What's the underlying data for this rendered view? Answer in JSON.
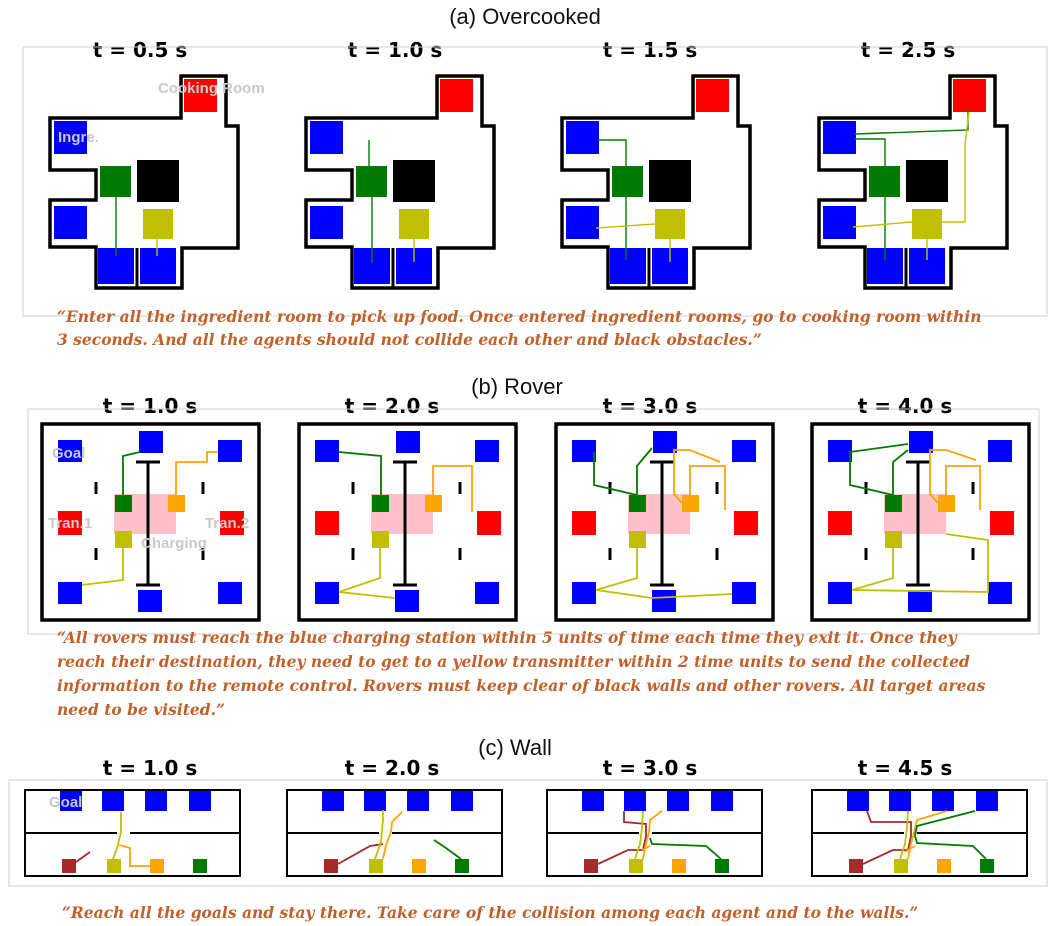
{
  "sections": {
    "overcooked": {
      "title": "(a) Overcooked",
      "times": [
        "t = 0.5 s",
        "t = 1.0 s",
        "t = 1.5 s",
        "t = 2.5 s"
      ],
      "labels": {
        "cooking": "Cooking Room",
        "ingredient": "Ingre."
      },
      "quote": [
        "“Enter all the ingredient room to pick up food. Once entered ingredient rooms, go to cooking room within",
        "3 seconds. And all the agents should not collide each other and black obstacles.”"
      ]
    },
    "rover": {
      "title": "(b) Rover",
      "times": [
        "t = 1.0 s",
        "t = 2.0 s",
        "t = 3.0 s",
        "t = 4.0 s"
      ],
      "labels": {
        "goal": "Goal",
        "tran1": "Tran.1",
        "tran2": "Tran.2",
        "charging": "Charging"
      },
      "quote": [
        "“All rovers must reach the blue charging station within 5 units of time each time they exit it. Once they",
        "reach their destination, they need to get to a yellow transmitter within 2 time units to send the collected",
        "information to the remote control. Rovers must keep clear of black walls and other rovers. All target areas",
        "need to be visited.”"
      ]
    },
    "wall": {
      "title": "(c) Wall",
      "times": [
        "t = 1.0 s",
        "t = 2.0 s",
        "t = 3.0 s",
        "t = 4.5 s"
      ],
      "labels": {
        "goal": "Goal"
      },
      "quote": [
        "“Reach all the goals and stay there. Take care of the collision among each agent and to the walls.”"
      ]
    }
  },
  "colors": {
    "goal_blue": "#0000ff",
    "cooking_red": "#ff0000",
    "obstacle_black": "#000000",
    "agent_green": "#007a00",
    "agent_yellow": "#c0c000",
    "agent_orange": "#ffa500",
    "agent_darkred": "#a52a2a",
    "charging_pink": "#ffc0cb",
    "quote_text": "#c0602a"
  }
}
